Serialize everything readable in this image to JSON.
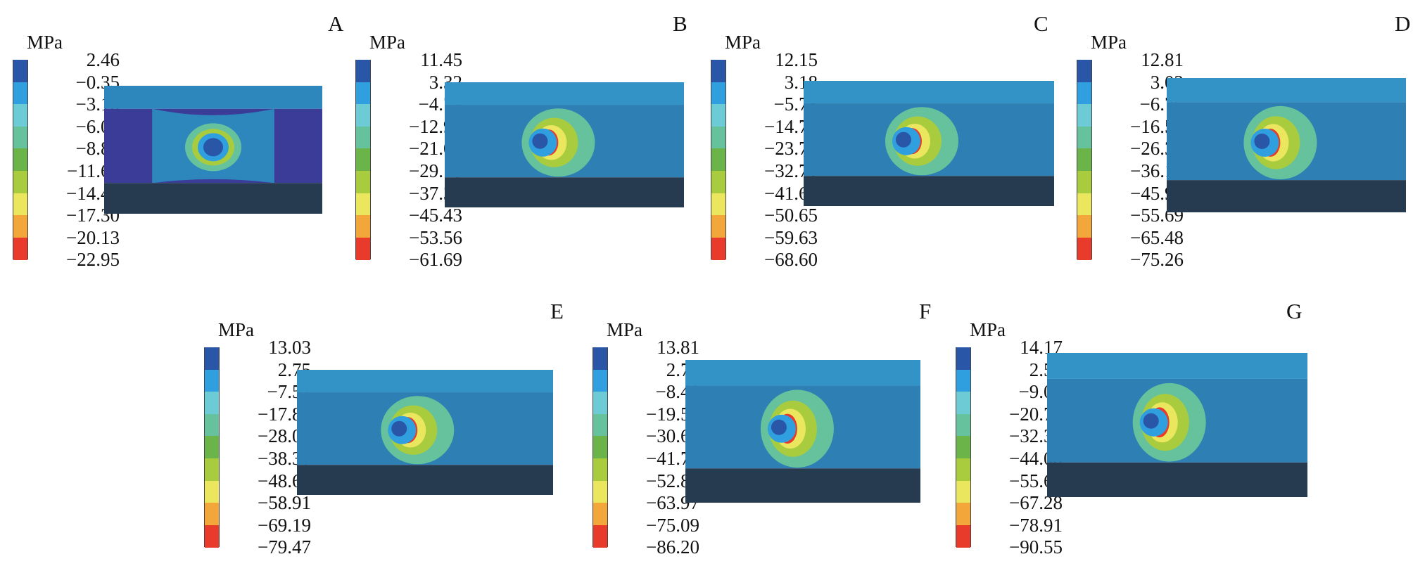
{
  "unit": "MPa",
  "colors": [
    "#2a56a8",
    "#2f9fe0",
    "#6ccbd4",
    "#66c29c",
    "#6ab44a",
    "#a9cc3f",
    "#eae75e",
    "#f3a73a",
    "#e83b2c"
  ],
  "model_colors": {
    "top_face": "#3393c6",
    "front_face": "#2e7fb3",
    "bottom_face": "#263a50",
    "edge": "#2a75ab",
    "panel_a_body": "#3a3c97",
    "panel_a_top": "#2d87bd"
  },
  "panels": [
    {
      "letter": "A",
      "ticks": [
        "2.46",
        "−0.35",
        "−3.18",
        "−6.00",
        "−8.83",
        "−11.65",
        "−14.48",
        "−17.30",
        "−20.13",
        "−22.95"
      ]
    },
    {
      "letter": "B",
      "ticks": [
        "11.45",
        "3.32",
        "−4.79",
        "−12.92",
        "−21.05",
        "−29.18",
        "−37.31",
        "−45.43",
        "−53.56",
        "−61.69"
      ]
    },
    {
      "letter": "C",
      "ticks": [
        "12.15",
        "3.18",
        "−5.78",
        "−14.76",
        "−23.73",
        "−32.71",
        "−41.68",
        "−50.65",
        "−59.63",
        "−68.60"
      ]
    },
    {
      "letter": "D",
      "ticks": [
        "12.81",
        "3.02",
        "−6.75",
        "−16.54",
        "−26.33",
        "−36.12",
        "−45.90",
        "−55.69",
        "−65.48",
        "−75.26"
      ]
    },
    {
      "letter": "E",
      "ticks": [
        "13.03",
        "2.75",
        "−7.52",
        "−17.80",
        "−28.08",
        "−38.35",
        "−48.63",
        "−58.91",
        "−69.19",
        "−79.47"
      ]
    },
    {
      "letter": "F",
      "ticks": [
        "13.81",
        "2.70",
        "−8.41",
        "−19.52",
        "−30.63",
        "−41.75",
        "−52.86",
        "−63.97",
        "−75.09",
        "−86.20"
      ]
    },
    {
      "letter": "G",
      "ticks": [
        "14.17",
        "2.54",
        "−9.09",
        "−20.73",
        "−32.36",
        "−44.00",
        "−55.64",
        "−67.28",
        "−78.91",
        "−90.55"
      ]
    }
  ]
}
